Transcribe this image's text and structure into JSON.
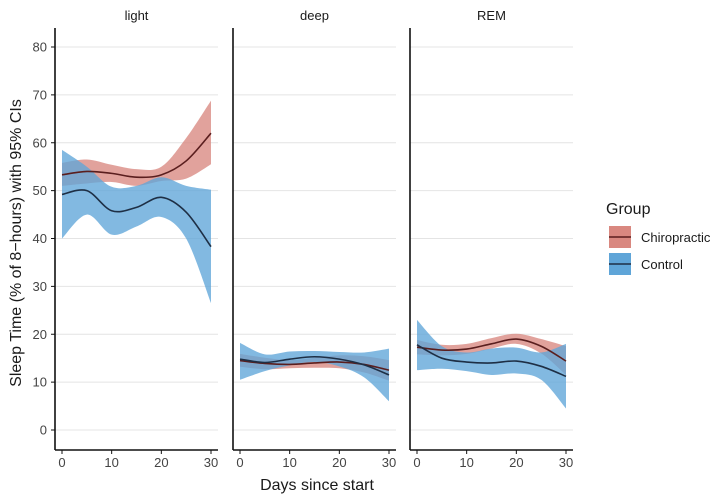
{
  "chart_data": {
    "type": "line",
    "ylabel": "Sleep Time (% of 8−hours) with 95% CIs",
    "xlabel": "Days since start",
    "ylim": [
      0,
      80
    ],
    "xlim": [
      0,
      30
    ],
    "y_ticks": [
      "0",
      "10",
      "20",
      "30",
      "40",
      "50",
      "60",
      "70",
      "80"
    ],
    "x_ticks": [
      "0",
      "10",
      "20",
      "30"
    ],
    "grid": true,
    "legend": {
      "title": "Group",
      "placement": "right",
      "entries": [
        {
          "name": "Chiropractic",
          "color": "#d98880",
          "line_color": "#5a1e1e"
        },
        {
          "name": "Control",
          "color": "#5fa5d8",
          "line_color": "#1e2f45"
        }
      ]
    },
    "panels": [
      {
        "title": "light",
        "series": [
          {
            "name": "Chiropractic",
            "x": [
              0,
              5,
              10,
              15,
              20,
              25,
              30
            ],
            "mean": [
              53.3,
              54.0,
              53.6,
              52.8,
              53.3,
              56.2,
              62.0
            ],
            "lower": [
              51.0,
              51.5,
              51.8,
              51.0,
              52.0,
              52.5,
              55.5
            ],
            "upper": [
              55.8,
              56.5,
              55.4,
              54.5,
              55.0,
              61.0,
              68.8
            ]
          },
          {
            "name": "Control",
            "x": [
              0,
              5,
              10,
              15,
              20,
              25,
              30
            ],
            "mean": [
              49.2,
              50.0,
              45.8,
              46.5,
              48.6,
              45.5,
              38.3
            ],
            "lower": [
              40.0,
              45.0,
              40.8,
              42.5,
              44.5,
              40.0,
              26.5
            ],
            "upper": [
              58.5,
              55.0,
              50.8,
              51.0,
              52.8,
              51.0,
              50.2
            ]
          }
        ]
      },
      {
        "title": "deep",
        "series": [
          {
            "name": "Chiropractic",
            "x": [
              0,
              5,
              10,
              15,
              20,
              25,
              30
            ],
            "mean": [
              14.5,
              13.9,
              13.7,
              14.0,
              14.2,
              13.7,
              12.5
            ],
            "lower": [
              13.2,
              12.7,
              12.9,
              13.0,
              12.9,
              12.0,
              10.3
            ],
            "upper": [
              15.9,
              15.1,
              14.6,
              15.1,
              15.6,
              15.4,
              14.6
            ]
          },
          {
            "name": "Control",
            "x": [
              0,
              5,
              10,
              15,
              20,
              25,
              30
            ],
            "mean": [
              14.8,
              14.1,
              14.8,
              15.3,
              14.8,
              13.6,
              11.5
            ],
            "lower": [
              10.5,
              12.3,
              13.5,
              14.2,
              13.3,
              11.0,
              6.0
            ],
            "upper": [
              18.2,
              15.8,
              16.4,
              16.5,
              16.3,
              16.2,
              17.0
            ]
          }
        ]
      },
      {
        "title": "REM",
        "series": [
          {
            "name": "Chiropractic",
            "x": [
              0,
              5,
              10,
              15,
              20,
              25,
              30
            ],
            "mean": [
              17.3,
              16.7,
              16.9,
              18.0,
              19.0,
              17.5,
              14.4
            ],
            "lower": [
              15.8,
              15.6,
              15.9,
              17.0,
              18.0,
              16.0,
              11.5
            ],
            "upper": [
              18.8,
              17.8,
              18.0,
              19.2,
              20.1,
              19.0,
              17.5
            ]
          },
          {
            "name": "Control",
            "x": [
              0,
              5,
              10,
              15,
              20,
              25,
              30
            ],
            "mean": [
              17.8,
              15.0,
              14.2,
              14.0,
              14.4,
              13.3,
              11.2
            ],
            "lower": [
              12.5,
              12.8,
              12.3,
              11.5,
              11.8,
              10.5,
              4.5
            ],
            "upper": [
              23.0,
              17.5,
              16.2,
              17.0,
              17.2,
              16.2,
              18.0
            ]
          }
        ]
      }
    ]
  }
}
